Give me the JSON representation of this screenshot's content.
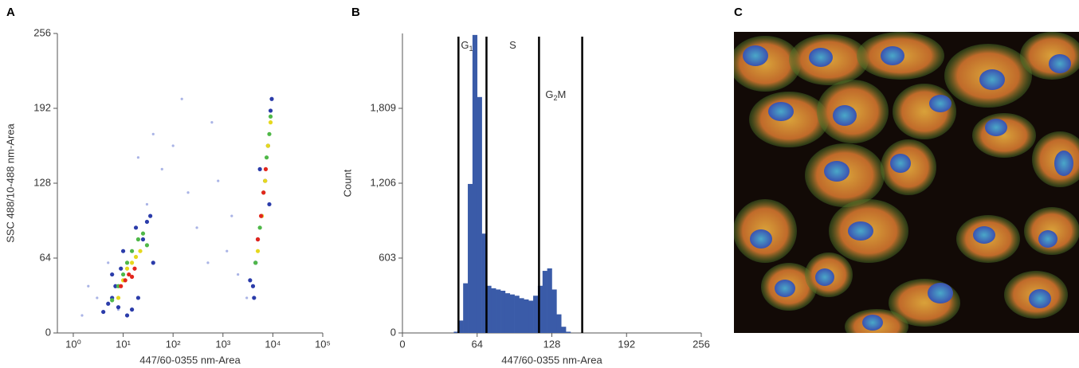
{
  "chart_data": [
    {
      "type": "scatter",
      "panel": "A",
      "xlabel": "447/60-0355 nm-Area",
      "ylabel": "SSC 488/10-488 nm-Area",
      "xscale": "log",
      "xlim": [
        0.48,
        100000
      ],
      "xticks": [
        {
          "value": 1,
          "label": "10⁰"
        },
        {
          "value": 10,
          "label": "10¹"
        },
        {
          "value": 100,
          "label": "10²"
        },
        {
          "value": 1000,
          "label": "10³"
        },
        {
          "value": 10000,
          "label": "10⁴"
        },
        {
          "value": 100000,
          "label": "10⁵"
        }
      ],
      "ylim": [
        0,
        256
      ],
      "yticks": [
        0,
        64,
        128,
        192,
        256
      ],
      "series": [
        {
          "color": "#aab4e6",
          "x": [
            3,
            5,
            8,
            30,
            60,
            100,
            200,
            300,
            500,
            800,
            1500,
            2000,
            3000,
            150,
            40,
            20,
            1.5,
            2,
            600,
            1200
          ],
          "y": [
            30,
            60,
            20,
            110,
            140,
            160,
            120,
            90,
            60,
            130,
            100,
            50,
            30,
            200,
            170,
            150,
            15,
            40,
            180,
            70
          ]
        },
        {
          "color": "#2b3caa",
          "x": [
            4,
            5,
            6,
            7,
            8,
            9,
            12,
            15,
            20,
            25,
            30,
            35,
            40,
            6,
            10,
            18,
            3500,
            4000,
            4500,
            5000,
            6000,
            7000,
            8000,
            9000,
            9500,
            4200,
            5500,
            8500
          ],
          "y": [
            18,
            25,
            30,
            40,
            22,
            55,
            15,
            20,
            30,
            80,
            95,
            100,
            60,
            50,
            70,
            90,
            45,
            40,
            60,
            80,
            100,
            130,
            160,
            190,
            200,
            30,
            140,
            110
          ]
        },
        {
          "color": "#4fb848",
          "x": [
            6,
            8,
            10,
            12,
            15,
            20,
            25,
            30,
            4500,
            5500,
            6500,
            7500,
            8500,
            9000
          ],
          "y": [
            28,
            40,
            50,
            60,
            70,
            80,
            85,
            75,
            60,
            90,
            120,
            150,
            170,
            185
          ]
        },
        {
          "color": "#e6d81e",
          "x": [
            8,
            10,
            12,
            15,
            18,
            22,
            5000,
            6000,
            7000,
            8000,
            9000
          ],
          "y": [
            30,
            45,
            55,
            60,
            65,
            70,
            70,
            100,
            130,
            160,
            180
          ]
        },
        {
          "color": "#e3261c",
          "x": [
            9,
            11,
            13,
            15,
            17,
            5000,
            5800,
            6500,
            7200
          ],
          "y": [
            40,
            45,
            50,
            48,
            55,
            80,
            100,
            120,
            140
          ]
        }
      ]
    },
    {
      "type": "histogram",
      "panel": "B",
      "xlabel": "447/60-0355 nm-Area",
      "ylabel": "Count",
      "xlim": [
        0,
        256
      ],
      "xticks": [
        0,
        64,
        128,
        192,
        256
      ],
      "ylim": [
        0,
        2412
      ],
      "yticks": [
        0,
        603,
        {
          "value": 1206,
          "label": "1,206"
        },
        {
          "value": 1809,
          "label": "1,809"
        }
      ],
      "color": "#3a5ba8",
      "bins": [
        44,
        48,
        52,
        56,
        60,
        64,
        68,
        72,
        76,
        80,
        84,
        88,
        92,
        96,
        100,
        104,
        108,
        112,
        116,
        120,
        124,
        128,
        132,
        136,
        140,
        144
      ],
      "values": [
        10,
        100,
        400,
        1200,
        2400,
        1900,
        800,
        380,
        360,
        350,
        340,
        320,
        310,
        300,
        280,
        270,
        260,
        300,
        380,
        500,
        520,
        350,
        150,
        50,
        10
      ],
      "gates": [
        48,
        72,
        117,
        154
      ],
      "gate_labels": [
        {
          "text": "G",
          "sub": "1"
        },
        {
          "text": "S"
        },
        {
          "text": "G",
          "sub": "2",
          "suffix": "M"
        }
      ]
    }
  ],
  "image": {
    "panel": "C"
  }
}
